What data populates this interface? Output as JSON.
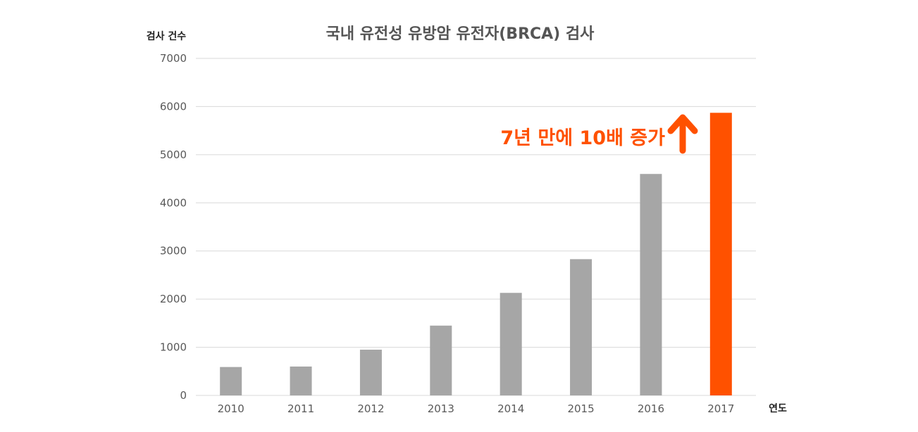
{
  "chart_data": {
    "type": "bar",
    "title": "국내 유전성 유방암 유전자(BRCA) 검사",
    "ylabel": "검사 건수",
    "xlabel": "연도",
    "categories": [
      "2010",
      "2011",
      "2012",
      "2013",
      "2014",
      "2015",
      "2016",
      "2017"
    ],
    "values": [
      590,
      600,
      950,
      1450,
      2130,
      2830,
      4600,
      5870
    ],
    "ylim": [
      0,
      7000
    ],
    "yticks": [
      0,
      1000,
      2000,
      3000,
      4000,
      5000,
      6000,
      7000
    ],
    "grid": true,
    "bar_colors": [
      "#a6a6a6",
      "#a6a6a6",
      "#a6a6a6",
      "#a6a6a6",
      "#a6a6a6",
      "#a6a6a6",
      "#a6a6a6",
      "#ff5100"
    ],
    "annotation": {
      "text": "7년 만에 10배 증가",
      "color": "#ff5100",
      "icon": "arrow-up-icon"
    }
  }
}
